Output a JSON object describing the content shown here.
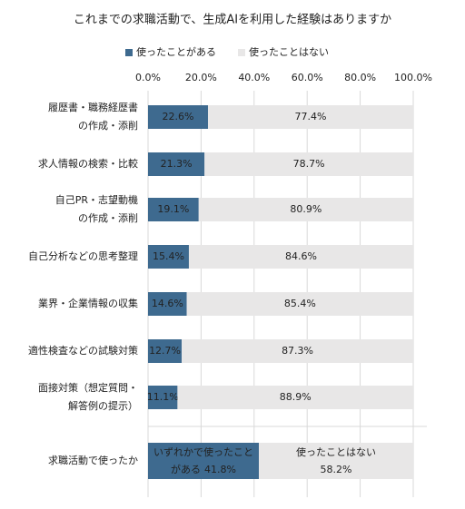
{
  "chart_data": {
    "type": "stacked-bar-horizontal",
    "title": "これまでの求職活動で、生成AIを利用した経験はありますか",
    "categories": [
      [
        "履歴書・職務経歴書",
        "の作成・添削"
      ],
      [
        "求人情報の検索・比較"
      ],
      [
        "自己PR・志望動機",
        "の作成・添削"
      ],
      [
        "自己分析などの思考整理"
      ],
      [
        "業界・企業情報の収集"
      ],
      [
        "適性検査などの試験対策"
      ],
      [
        "面接対策（想定質問・",
        "解答例の提示）"
      ],
      [
        "求職活動で使ったか"
      ]
    ],
    "series": [
      {
        "name": "使ったことがある",
        "color": "#3e6a8f",
        "label_color": "#ffffff",
        "values": [
          22.6,
          21.3,
          19.1,
          15.4,
          14.6,
          12.7,
          11.1,
          41.8
        ],
        "value_labels": [
          "22.6%",
          "21.3%",
          "19.1%",
          "15.4%",
          "14.6%",
          "12.7%",
          "11.1%",
          "41.8%"
        ]
      },
      {
        "name": "使ったことはない",
        "color": "#e8e7e7",
        "label_color": "#222222",
        "values": [
          77.4,
          78.7,
          80.9,
          84.6,
          85.4,
          87.3,
          88.9,
          58.2
        ],
        "value_labels": [
          "77.4%",
          "78.7%",
          "80.9%",
          "84.6%",
          "85.4%",
          "87.3%",
          "88.9%",
          "58.2%"
        ]
      }
    ],
    "annotations": [
      "いずれかで使ったこと",
      "がある",
      "使ったことはない"
    ],
    "xlim": [
      0,
      100
    ],
    "xticks": [
      {
        "value": 0,
        "label": "0.0%"
      },
      {
        "value": 20,
        "label": "20.0%"
      },
      {
        "value": 40,
        "label": "40.0%"
      },
      {
        "value": 60,
        "label": "60.0%"
      },
      {
        "value": 80,
        "label": "80.0%"
      },
      {
        "value": 100,
        "label": "100.0%"
      }
    ],
    "grid": true
  }
}
